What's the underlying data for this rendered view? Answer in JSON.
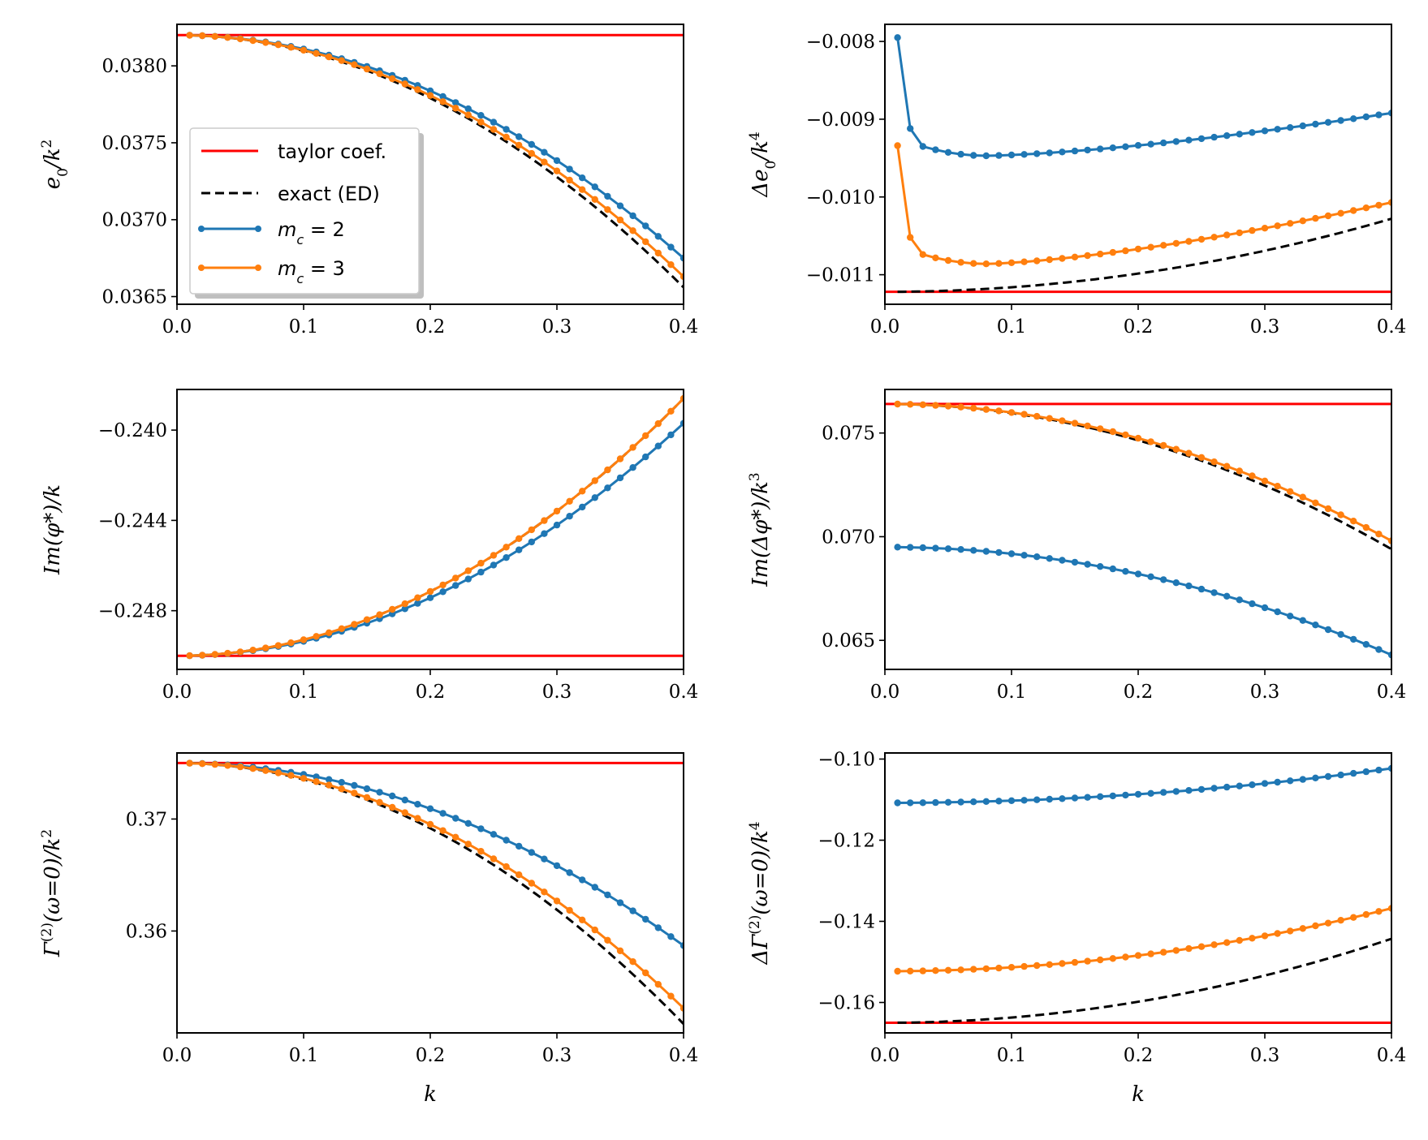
{
  "colors": {
    "taylor": "#ff0000",
    "exact": "#000000",
    "mc2": "#1f77b4",
    "mc3": "#ff7f0e"
  },
  "legend": {
    "location": "center-left of top-left panel",
    "items": [
      {
        "key": "taylor",
        "label": "taylor coef.",
        "style": "solid"
      },
      {
        "key": "exact",
        "label": "exact (ED)",
        "style": "dashed"
      },
      {
        "key": "mc2",
        "label": "m_c = 2",
        "style": "marker"
      },
      {
        "key": "mc3",
        "label": "m_c = 3",
        "style": "marker"
      }
    ]
  },
  "chart_data": [
    {
      "id": "e0",
      "type": "line",
      "ylabel": "e_0/k^2",
      "xlabel": "",
      "xlim": [
        0,
        0.4
      ],
      "ylim": [
        0.03645,
        0.03827
      ],
      "xticks": [
        "0.0",
        "0.1",
        "0.2",
        "0.3",
        "0.4"
      ],
      "yticks": [
        {
          "v": 0.0365,
          "label": "0.0365"
        },
        {
          "v": 0.037,
          "label": "0.0370"
        },
        {
          "v": 0.0375,
          "label": "0.0375"
        },
        {
          "v": 0.038,
          "label": "0.0380"
        }
      ],
      "series": [
        {
          "name": "taylor coef.",
          "key": "taylor",
          "kind": "hline",
          "y": 0.0382
        },
        {
          "name": "exact (ED)",
          "key": "exact",
          "kind": "curve",
          "formula": "quad",
          "y0": 0.0382,
          "y1": 0.03656
        },
        {
          "name": "m_c = 2",
          "key": "mc2",
          "kind": "markers",
          "formula": "quad",
          "y0": 0.0382,
          "y1": 0.03675
        },
        {
          "name": "m_c = 3",
          "key": "mc3",
          "kind": "markers",
          "formula": "quad",
          "y0": 0.0382,
          "y1": 0.03663
        }
      ]
    },
    {
      "id": "de0",
      "type": "line",
      "ylabel": "Δe_0/k^4",
      "xlabel": "",
      "xlim": [
        0,
        0.4
      ],
      "ylim": [
        -0.01138,
        -0.00778
      ],
      "xticks": [
        "0.0",
        "0.1",
        "0.2",
        "0.3",
        "0.4"
      ],
      "yticks": [
        {
          "v": -0.011,
          "label": "−0.011"
        },
        {
          "v": -0.01,
          "label": "−0.010"
        },
        {
          "v": -0.009,
          "label": "−0.009"
        },
        {
          "v": -0.008,
          "label": "−0.008"
        }
      ],
      "series": [
        {
          "name": "taylor coef.",
          "key": "taylor",
          "kind": "hline",
          "y": -0.01122
        },
        {
          "name": "exact (ED)",
          "key": "exact",
          "kind": "curve",
          "formula": "quad",
          "y0": -0.01122,
          "y1": -0.01028
        },
        {
          "name": "m_c = 2",
          "key": "mc2",
          "kind": "markers",
          "formula": "valley",
          "first": [
            -0.00795,
            -0.00912,
            -0.00935
          ],
          "min": -0.00947,
          "kmin": 0.08,
          "end": -0.00892
        },
        {
          "name": "m_c = 3",
          "key": "mc3",
          "kind": "markers",
          "formula": "valley",
          "first": [
            -0.00934,
            -0.01052,
            -0.01074
          ],
          "min": -0.01086,
          "kmin": 0.08,
          "end": -0.01007
        }
      ]
    },
    {
      "id": "imphi",
      "type": "line",
      "ylabel": "Im(φ*)/k",
      "xlabel": "",
      "xlim": [
        0,
        0.4
      ],
      "ylim": [
        -0.2506,
        -0.2382
      ],
      "xticks": [
        "0.0",
        "0.1",
        "0.2",
        "0.3",
        "0.4"
      ],
      "yticks": [
        {
          "v": -0.248,
          "label": "−0.248"
        },
        {
          "v": -0.244,
          "label": "−0.244"
        },
        {
          "v": -0.24,
          "label": "−0.240"
        }
      ],
      "series": [
        {
          "name": "taylor coef.",
          "key": "taylor",
          "kind": "hline",
          "y": -0.25
        },
        {
          "name": "exact (ED)",
          "key": "exact",
          "kind": "curve",
          "formula": "quad",
          "y0": -0.25,
          "y1": -0.2386
        },
        {
          "name": "m_c = 2",
          "key": "mc2",
          "kind": "markers",
          "formula": "quad",
          "y0": -0.25,
          "y1": -0.2397
        },
        {
          "name": "m_c = 3",
          "key": "mc3",
          "kind": "markers",
          "formula": "quad",
          "y0": -0.25,
          "y1": -0.2386
        }
      ]
    },
    {
      "id": "dimphi",
      "type": "line",
      "ylabel": "Im(Δφ*)/k^3",
      "xlabel": "",
      "xlim": [
        0,
        0.4
      ],
      "ylim": [
        0.0636,
        0.0771
      ],
      "xticks": [
        "0.0",
        "0.1",
        "0.2",
        "0.3",
        "0.4"
      ],
      "yticks": [
        {
          "v": 0.065,
          "label": "0.065"
        },
        {
          "v": 0.07,
          "label": "0.070"
        },
        {
          "v": 0.075,
          "label": "0.075"
        }
      ],
      "series": [
        {
          "name": "taylor coef.",
          "key": "taylor",
          "kind": "hline",
          "y": 0.0764
        },
        {
          "name": "exact (ED)",
          "key": "exact",
          "kind": "curve",
          "formula": "quad",
          "y0": 0.0764,
          "y1": 0.0694
        },
        {
          "name": "m_c = 2",
          "key": "mc2",
          "kind": "markers",
          "formula": "quad",
          "y0": 0.0695,
          "y1": 0.0643
        },
        {
          "name": "m_c = 3",
          "key": "mc3",
          "kind": "markers",
          "formula": "quad",
          "y0": 0.0764,
          "y1": 0.0698
        }
      ]
    },
    {
      "id": "gamma",
      "type": "line",
      "ylabel": "Γ^(2)(ω=0)/k^2",
      "xlabel": "k",
      "xlim": [
        0,
        0.4
      ],
      "ylim": [
        0.3509,
        0.3759
      ],
      "xticks": [
        "0.0",
        "0.1",
        "0.2",
        "0.3",
        "0.4"
      ],
      "yticks": [
        {
          "v": 0.36,
          "label": "0.36"
        },
        {
          "v": 0.37,
          "label": "0.37"
        }
      ],
      "series": [
        {
          "name": "taylor coef.",
          "key": "taylor",
          "kind": "hline",
          "y": 0.375
        },
        {
          "name": "exact (ED)",
          "key": "exact",
          "kind": "curve",
          "formula": "quad",
          "y0": 0.375,
          "y1": 0.3517
        },
        {
          "name": "m_c = 2",
          "key": "mc2",
          "kind": "markers",
          "formula": "quad",
          "y0": 0.375,
          "y1": 0.3587
        },
        {
          "name": "m_c = 3",
          "key": "mc3",
          "kind": "markers",
          "formula": "quad",
          "y0": 0.375,
          "y1": 0.3531
        }
      ]
    },
    {
      "id": "dgamma",
      "type": "line",
      "ylabel": "ΔΓ^(2)(ω=0)/k^4",
      "xlabel": "k",
      "xlim": [
        0,
        0.4
      ],
      "ylim": [
        -0.1675,
        -0.0985
      ],
      "xticks": [
        "0.0",
        "0.1",
        "0.2",
        "0.3",
        "0.4"
      ],
      "yticks": [
        {
          "v": -0.16,
          "label": "−0.16"
        },
        {
          "v": -0.14,
          "label": "−0.14"
        },
        {
          "v": -0.12,
          "label": "−0.12"
        },
        {
          "v": -0.1,
          "label": "−0.10"
        }
      ],
      "series": [
        {
          "name": "taylor coef.",
          "key": "taylor",
          "kind": "hline",
          "y": -0.165
        },
        {
          "name": "exact (ED)",
          "key": "exact",
          "kind": "curve",
          "formula": "quad",
          "y0": -0.165,
          "y1": -0.1443
        },
        {
          "name": "m_c = 2",
          "key": "mc2",
          "kind": "markers",
          "formula": "quad",
          "y0": -0.1108,
          "y1": -0.1023
        },
        {
          "name": "m_c = 3",
          "key": "mc3",
          "kind": "markers",
          "formula": "quad",
          "y0": -0.1523,
          "y1": -0.1368
        }
      ]
    }
  ]
}
